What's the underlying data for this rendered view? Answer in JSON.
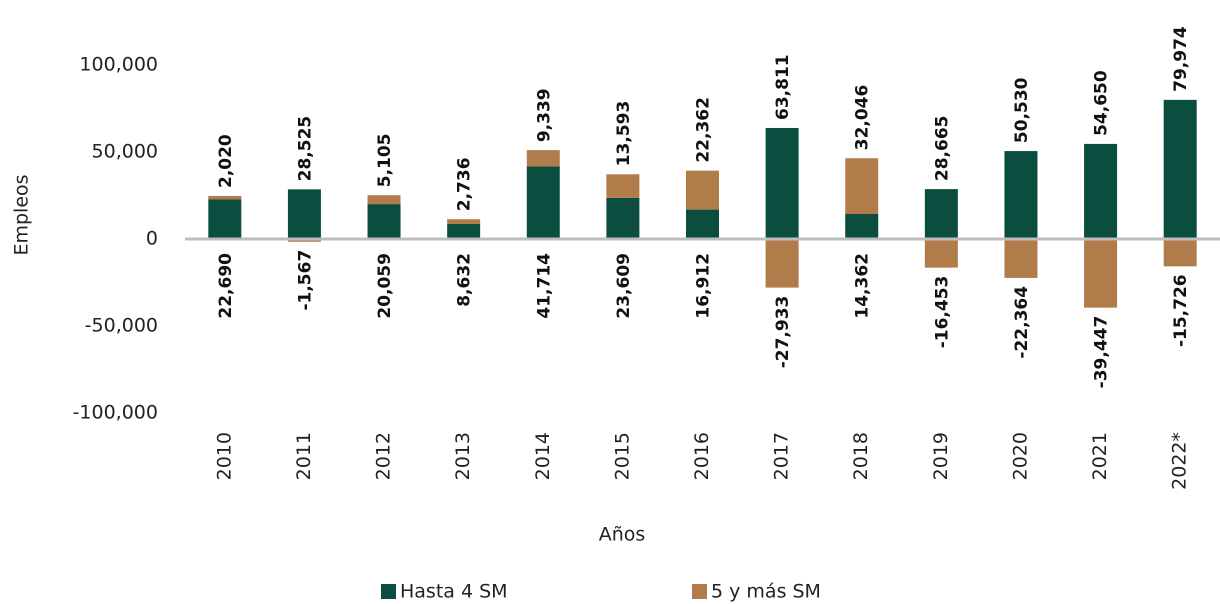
{
  "chart_data": {
    "type": "stacked_bar",
    "categories": [
      "2010",
      "2011",
      "2012",
      "2013",
      "2014",
      "2015",
      "2016",
      "2017",
      "2018",
      "2019",
      "2020",
      "2021",
      "2022*"
    ],
    "series": [
      {
        "name": "Hasta 4 SM",
        "color": "#0b4d3e",
        "values": [
          22690,
          28525,
          20059,
          8632,
          41714,
          23609,
          16912,
          63811,
          14362,
          28665,
          50530,
          54650,
          79974
        ],
        "value_labels": [
          "22,690",
          "28,525",
          "20,059",
          "8,632",
          "41,714",
          "23,609",
          "16,912",
          "63,811",
          "14,362",
          "28,665",
          "50,530",
          "54,650",
          "79,974"
        ]
      },
      {
        "name": "5 y más SM",
        "color": "#b07d4a",
        "values": [
          2020,
          -1567,
          5105,
          2736,
          9339,
          13593,
          22362,
          -27933,
          32046,
          -16453,
          -22364,
          -39447,
          -15726
        ],
        "value_labels": [
          "2,020",
          "-1,567",
          "5,105",
          "2,736",
          "9,339",
          "13,593",
          "22,362",
          "-27,933",
          "32,046",
          "-16,453",
          "-22,364",
          "-39,447",
          "-15,726"
        ]
      }
    ],
    "x_label": "Años",
    "y_label": "Empleos",
    "ylim": [
      -100000,
      100000
    ],
    "yticks": [
      {
        "value": -100000,
        "label": "-100,000"
      },
      {
        "value": -50000,
        "label": "-50,000"
      },
      0,
      {
        "value": 50000,
        "label": "50,000"
      },
      {
        "value": 100000,
        "label": "100,000"
      }
    ],
    "legend": "bottom"
  }
}
